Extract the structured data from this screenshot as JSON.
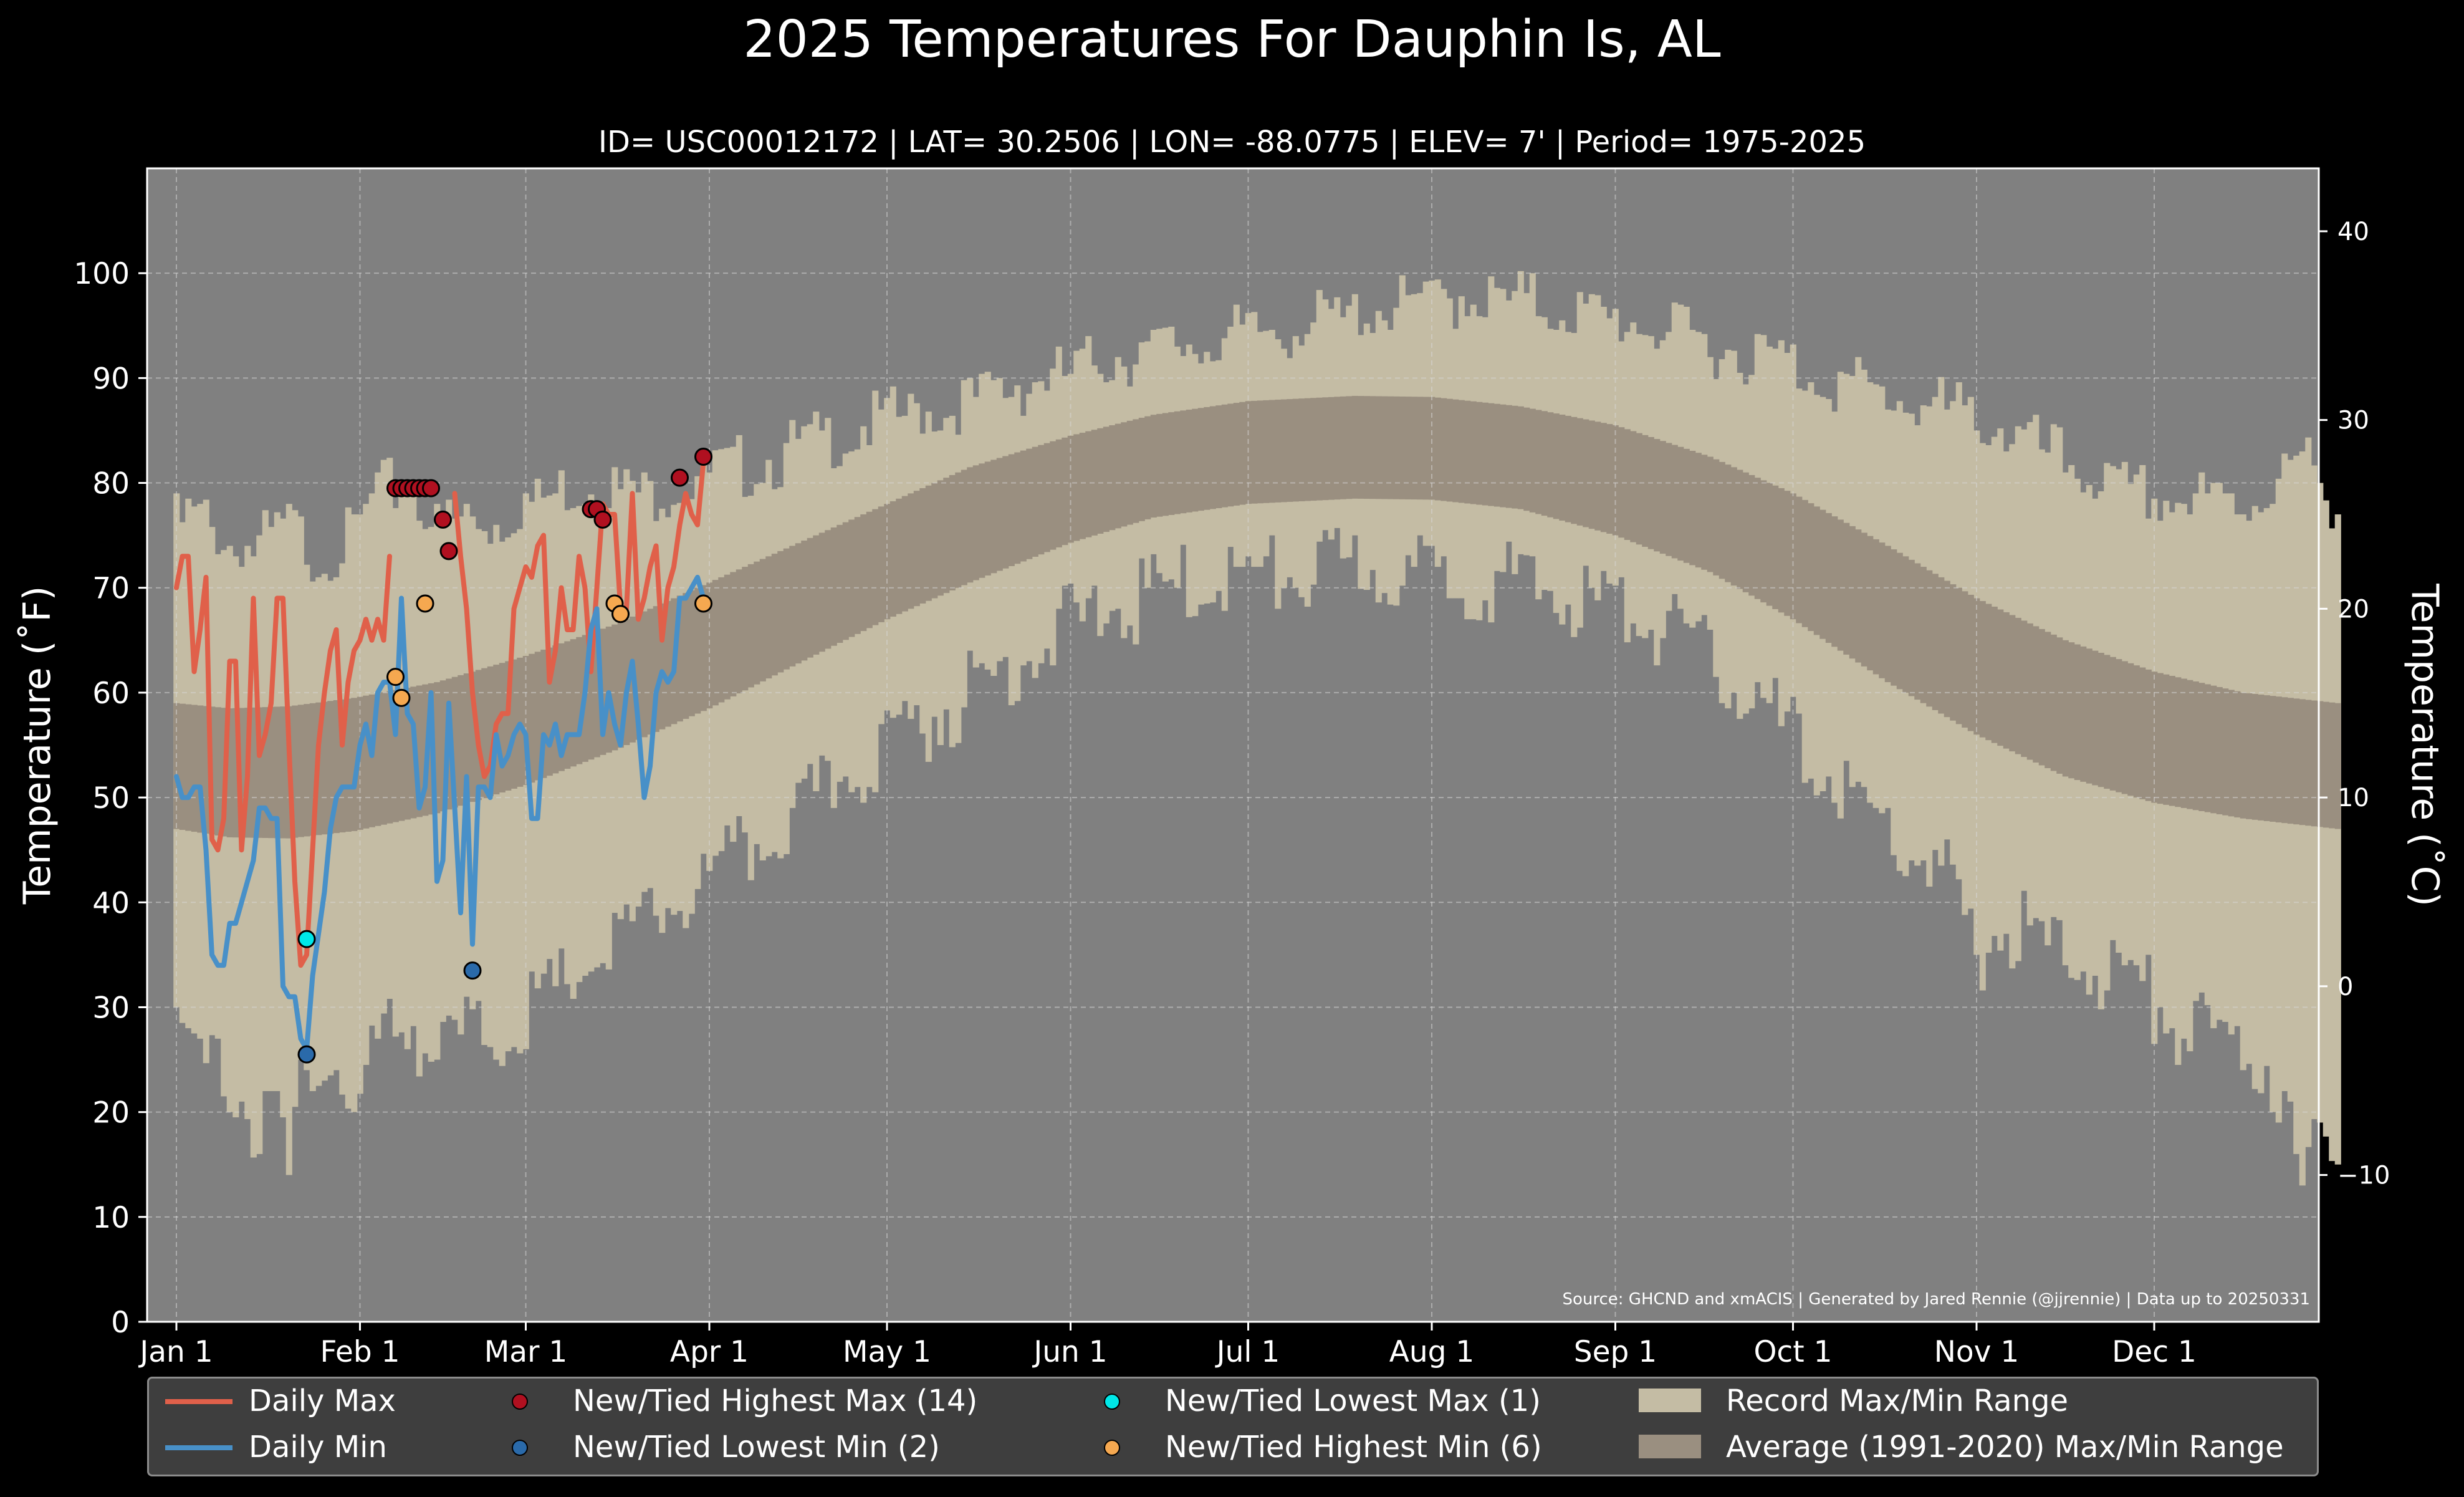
{
  "title": "2025 Temperatures For Dauphin Is, AL",
  "subtitle": "ID= USC00012172 | LAT= 30.2506 | LON= -88.0775 | ELEV= 7' | Period= 1975-2025",
  "source_note": "Source: GHCND and xmACIS | Generated by Jared Rennie (@jjrennie) | Data up to 20250331",
  "colors": {
    "background": "#808080",
    "record_band": "#c4bca4",
    "normal_band": "#9a8f80",
    "daily_max": "#e0604a",
    "daily_min": "#4890c8",
    "new_high_max": "#b01020",
    "new_low_min": "#2a6aaa",
    "new_low_max": "#00e8e8",
    "new_high_min": "#f5a850"
  },
  "legend": {
    "daily_max": "Daily Max",
    "daily_min": "Daily Min",
    "new_high_max": "New/Tied Highest Max (14)",
    "new_low_min": "New/Tied Lowest Min (2)",
    "new_low_max": "New/Tied Lowest Max (1)",
    "new_high_min": "New/Tied Highest Min (6)",
    "record_range": "Record Max/Min Range",
    "average_range": "Average (1991-2020) Max/Min Range"
  },
  "chart_data": {
    "type": "line",
    "xlabel": "",
    "ylabel": "Temperature ($^\\circ$F)",
    "y2label": "Temperature ($^\\circ$C)",
    "ylabel_text": "Temperature (˚F)",
    "y2label_text": "Temperature (˚C)",
    "ylim": [
      0,
      110
    ],
    "y_ticks": [
      0,
      10,
      20,
      30,
      40,
      50,
      60,
      70,
      80,
      90,
      100
    ],
    "y2_ticks": [
      -10,
      0,
      10,
      20,
      30,
      40
    ],
    "x_range_days": [
      1,
      366
    ],
    "x_ticks": [
      {
        "label": "Jan 1",
        "day": 1
      },
      {
        "label": "Feb 1",
        "day": 32
      },
      {
        "label": "Mar 1",
        "day": 60
      },
      {
        "label": "Apr 1",
        "day": 91
      },
      {
        "label": "May 1",
        "day": 121
      },
      {
        "label": "Jun 1",
        "day": 152
      },
      {
        "label": "Jul 1",
        "day": 182
      },
      {
        "label": "Aug 1",
        "day": 213
      },
      {
        "label": "Sep 1",
        "day": 244
      },
      {
        "label": "Oct 1",
        "day": 274
      },
      {
        "label": "Nov 1",
        "day": 305
      },
      {
        "label": "Dec 1",
        "day": 335
      }
    ],
    "grid": true,
    "legend_position": "bottom",
    "record_max_anchors": [
      [
        1,
        76
      ],
      [
        5,
        77
      ],
      [
        10,
        74
      ],
      [
        15,
        74
      ],
      [
        20,
        76
      ],
      [
        25,
        73
      ],
      [
        31,
        75
      ],
      [
        35,
        79
      ],
      [
        40,
        80
      ],
      [
        45,
        76
      ],
      [
        50,
        77
      ],
      [
        55,
        76
      ],
      [
        60,
        78
      ],
      [
        70,
        80
      ],
      [
        80,
        79
      ],
      [
        91,
        81
      ],
      [
        100,
        82
      ],
      [
        110,
        84
      ],
      [
        120,
        86
      ],
      [
        130,
        87
      ],
      [
        140,
        89
      ],
      [
        150,
        90
      ],
      [
        160,
        92
      ],
      [
        170,
        93
      ],
      [
        180,
        94
      ],
      [
        190,
        95
      ],
      [
        200,
        96
      ],
      [
        210,
        97
      ],
      [
        220,
        98
      ],
      [
        230,
        97
      ],
      [
        240,
        96
      ],
      [
        250,
        95
      ],
      [
        260,
        93
      ],
      [
        270,
        92
      ],
      [
        280,
        90
      ],
      [
        290,
        88
      ],
      [
        300,
        87
      ],
      [
        310,
        85
      ],
      [
        320,
        82
      ],
      [
        330,
        79
      ],
      [
        340,
        78
      ],
      [
        350,
        78
      ],
      [
        360,
        82
      ],
      [
        366,
        78
      ]
    ],
    "record_min_anchors": [
      [
        1,
        27
      ],
      [
        5,
        25
      ],
      [
        8,
        24
      ],
      [
        12,
        22
      ],
      [
        15,
        17
      ],
      [
        18,
        20
      ],
      [
        20,
        13
      ],
      [
        22,
        24
      ],
      [
        24,
        26
      ],
      [
        28,
        24
      ],
      [
        31,
        20
      ],
      [
        35,
        27
      ],
      [
        40,
        29
      ],
      [
        45,
        25
      ],
      [
        50,
        28
      ],
      [
        55,
        27
      ],
      [
        60,
        29
      ],
      [
        65,
        31
      ],
      [
        70,
        34
      ],
      [
        80,
        38
      ],
      [
        91,
        42
      ],
      [
        100,
        46
      ],
      [
        110,
        50
      ],
      [
        120,
        55
      ],
      [
        130,
        58
      ],
      [
        140,
        62
      ],
      [
        150,
        66
      ],
      [
        160,
        68
      ],
      [
        170,
        70
      ],
      [
        180,
        71
      ],
      [
        190,
        71
      ],
      [
        200,
        72
      ],
      [
        210,
        71
      ],
      [
        220,
        71
      ],
      [
        230,
        70
      ],
      [
        240,
        69
      ],
      [
        250,
        67
      ],
      [
        260,
        63
      ],
      [
        270,
        58
      ],
      [
        280,
        52
      ],
      [
        290,
        47
      ],
      [
        300,
        42
      ],
      [
        305,
        35
      ],
      [
        310,
        38
      ],
      [
        320,
        35
      ],
      [
        330,
        33
      ],
      [
        340,
        28
      ],
      [
        350,
        26
      ],
      [
        355,
        24
      ],
      [
        358,
        18
      ],
      [
        360,
        12
      ],
      [
        363,
        17
      ],
      [
        366,
        19
      ]
    ],
    "normal_max_anchors": [
      [
        1,
        59
      ],
      [
        10,
        58.5
      ],
      [
        20,
        58.7
      ],
      [
        31,
        59.5
      ],
      [
        45,
        61
      ],
      [
        60,
        63.5
      ],
      [
        75,
        66.5
      ],
      [
        91,
        70.5
      ],
      [
        105,
        74
      ],
      [
        121,
        78
      ],
      [
        135,
        81.5
      ],
      [
        152,
        84.5
      ],
      [
        166,
        86.5
      ],
      [
        182,
        87.8
      ],
      [
        200,
        88.3
      ],
      [
        213,
        88.2
      ],
      [
        228,
        87.3
      ],
      [
        244,
        85.5
      ],
      [
        260,
        82.5
      ],
      [
        274,
        79
      ],
      [
        290,
        74
      ],
      [
        305,
        69
      ],
      [
        320,
        65
      ],
      [
        335,
        62
      ],
      [
        350,
        60
      ],
      [
        366,
        59
      ]
    ],
    "normal_min_anchors": [
      [
        1,
        47
      ],
      [
        10,
        46.2
      ],
      [
        20,
        46.1
      ],
      [
        31,
        46.8
      ],
      [
        45,
        48.5
      ],
      [
        60,
        51.2
      ],
      [
        75,
        54.5
      ],
      [
        91,
        58.5
      ],
      [
        105,
        62.5
      ],
      [
        121,
        67
      ],
      [
        135,
        70.5
      ],
      [
        152,
        74.3
      ],
      [
        166,
        76.7
      ],
      [
        182,
        78
      ],
      [
        200,
        78.5
      ],
      [
        213,
        78.4
      ],
      [
        228,
        77.5
      ],
      [
        244,
        75
      ],
      [
        260,
        71.5
      ],
      [
        274,
        67
      ],
      [
        290,
        61
      ],
      [
        305,
        56
      ],
      [
        320,
        52
      ],
      [
        335,
        49.5
      ],
      [
        350,
        48
      ],
      [
        366,
        47
      ]
    ],
    "series": [
      {
        "name": "Daily Max",
        "x": [
          1,
          2,
          3,
          4,
          5,
          6,
          7,
          8,
          9,
          10,
          11,
          12,
          13,
          14,
          15,
          16,
          17,
          18,
          19,
          20,
          21,
          22,
          23,
          24,
          25,
          26,
          27,
          28,
          29,
          30,
          31,
          32,
          33,
          34,
          35,
          36,
          37,
          38,
          39,
          40,
          41,
          42,
          43,
          44,
          45,
          46,
          47,
          48,
          49,
          50,
          51,
          52,
          53,
          54,
          55,
          56,
          57,
          58,
          59,
          60,
          61,
          62,
          63,
          64,
          65,
          66,
          67,
          68,
          69,
          70,
          71,
          72,
          73,
          74,
          75,
          76,
          77,
          78,
          79,
          80,
          81,
          82,
          83,
          84,
          85,
          86,
          87,
          88,
          89,
          90
        ],
        "values": [
          70,
          73,
          73,
          62,
          66,
          71,
          46,
          45,
          48,
          63,
          63,
          45,
          52,
          69,
          54,
          56,
          59,
          69,
          69,
          55,
          42,
          34,
          35,
          45,
          55,
          60,
          64,
          66,
          55,
          61,
          64,
          65,
          67,
          65,
          67,
          65,
          73,
          null,
          null,
          null,
          null,
          null,
          null,
          null,
          null,
          null,
          null,
          79,
          73,
          68,
          60,
          55,
          52,
          53,
          57,
          58,
          58,
          68,
          70,
          72,
          71,
          74,
          75,
          61,
          64,
          70,
          66,
          66,
          73,
          70,
          62,
          70,
          78,
          77,
          77,
          68,
          68,
          79,
          67,
          69,
          72,
          74,
          65,
          70,
          72,
          76,
          79,
          77,
          76,
          82
        ]
      },
      {
        "name": "Daily Min",
        "x": [
          1,
          2,
          3,
          4,
          5,
          6,
          7,
          8,
          9,
          10,
          11,
          12,
          13,
          14,
          15,
          16,
          17,
          18,
          19,
          20,
          21,
          22,
          23,
          24,
          25,
          26,
          27,
          28,
          29,
          30,
          31,
          32,
          33,
          34,
          35,
          36,
          37,
          38,
          39,
          40,
          41,
          42,
          43,
          44,
          45,
          46,
          47,
          48,
          49,
          50,
          51,
          52,
          53,
          54,
          55,
          56,
          57,
          58,
          59,
          60,
          61,
          62,
          63,
          64,
          65,
          66,
          67,
          68,
          69,
          70,
          71,
          72,
          73,
          74,
          75,
          76,
          77,
          78,
          79,
          80,
          81,
          82,
          83,
          84,
          85,
          86,
          87,
          88,
          89,
          90
        ],
        "values": [
          52,
          50,
          50,
          51,
          51,
          45,
          35,
          34,
          34,
          38,
          38,
          40,
          42,
          44,
          49,
          49,
          48,
          48,
          32,
          31,
          31,
          27,
          26,
          33,
          37,
          41,
          47,
          50,
          51,
          51,
          51,
          55,
          57,
          54,
          60,
          61,
          61,
          56,
          69,
          58,
          57,
          49,
          51,
          60,
          42,
          44,
          59,
          49,
          39,
          52,
          36,
          51,
          51,
          50,
          56,
          53,
          54,
          56,
          57,
          56,
          48,
          48,
          56,
          55,
          57,
          54,
          56,
          56,
          56,
          60,
          66,
          68,
          56,
          60,
          57,
          55,
          60,
          63,
          57,
          50,
          53,
          60,
          62,
          61,
          62,
          69,
          69,
          70,
          71,
          69
        ]
      }
    ],
    "record_points": [
      {
        "type": "New/Tied Highest Max",
        "points": [
          [
            38,
            79.5
          ],
          [
            39,
            79.5
          ],
          [
            40,
            79.5
          ],
          [
            41,
            79.5
          ],
          [
            42,
            79.5
          ],
          [
            43,
            79.5
          ],
          [
            44,
            79.5
          ],
          [
            46,
            76.5
          ],
          [
            47,
            73.5
          ],
          [
            71,
            77.5
          ],
          [
            72,
            77.5
          ],
          [
            73,
            76.5
          ],
          [
            86,
            80.5
          ],
          [
            90,
            82.5
          ]
        ]
      },
      {
        "type": "New/Tied Lowest Min",
        "points": [
          [
            23,
            25.5
          ],
          [
            51,
            33.5
          ]
        ]
      },
      {
        "type": "New/Tied Lowest Max",
        "points": [
          [
            23,
            36.5
          ]
        ]
      },
      {
        "type": "New/Tied Highest Min",
        "points": [
          [
            38,
            61.5
          ],
          [
            39,
            59.5
          ],
          [
            43,
            68.5
          ],
          [
            75,
            68.5
          ],
          [
            76,
            67.5
          ],
          [
            90,
            68.5
          ]
        ]
      }
    ]
  }
}
